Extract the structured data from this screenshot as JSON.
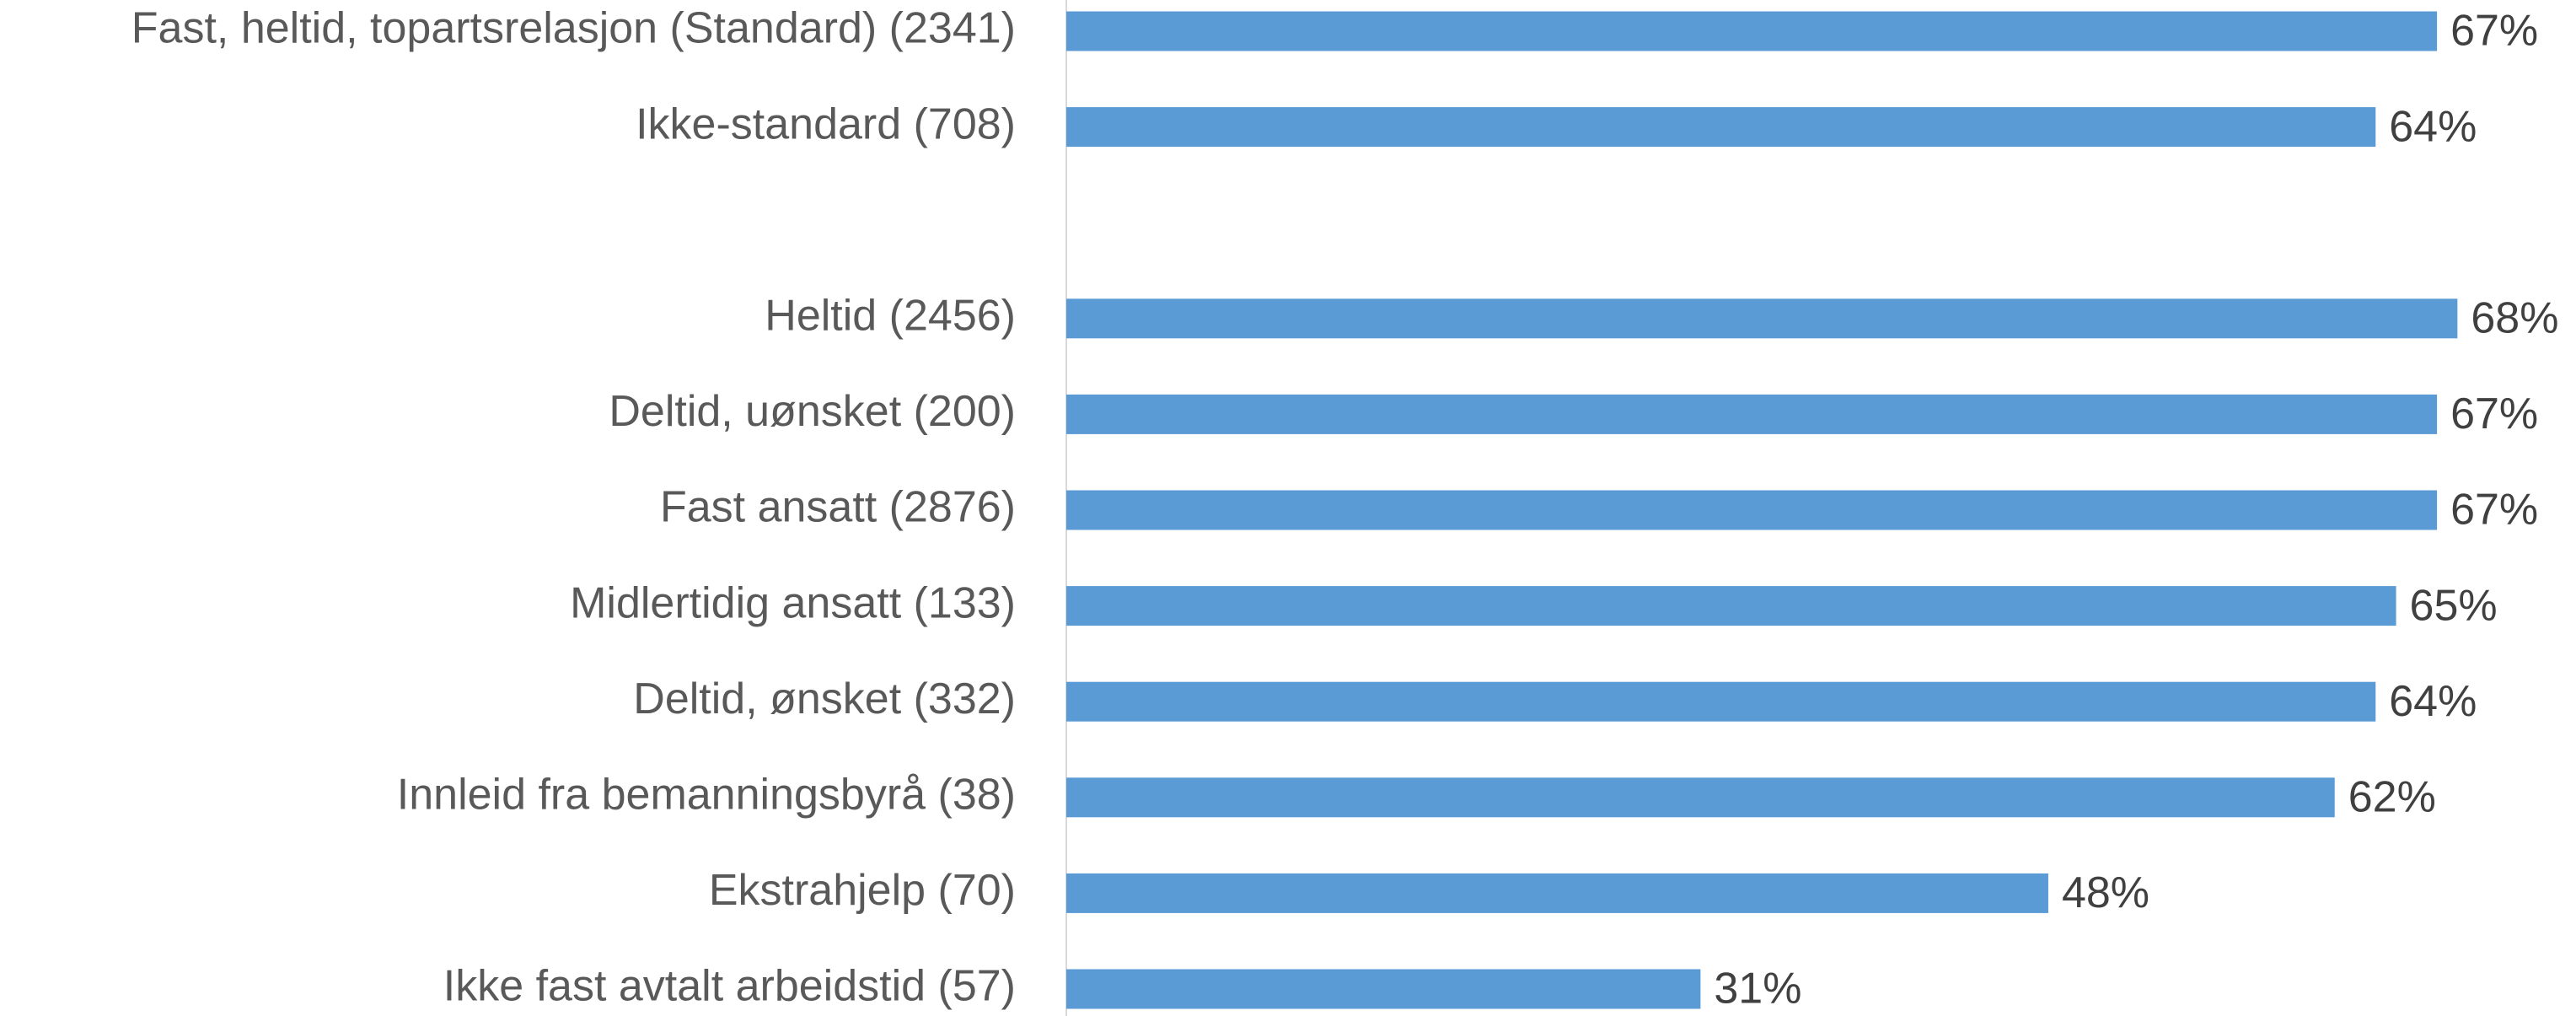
{
  "chart_data": {
    "type": "bar",
    "orientation": "horizontal",
    "categories": [
      "Fast, heltid, topartsrelasjon (Standard) (2341)",
      "Ikke-standard (708)",
      null,
      "Heltid (2456)",
      "Deltid, uønsket (200)",
      "Fast ansatt (2876)",
      "Midlertidig ansatt (133)",
      "Deltid, ønsket (332)",
      "Innleid fra bemanningsbyrå (38)",
      "Ekstrahjelp (70)",
      "Ikke fast avtalt arbeidstid (57)"
    ],
    "values": [
      67,
      64,
      null,
      68,
      67,
      67,
      65,
      64,
      62,
      48,
      31
    ],
    "value_labels": [
      "67%",
      "64%",
      null,
      "68%",
      "67%",
      "67%",
      "65%",
      "64%",
      "62%",
      "48%",
      "31%"
    ],
    "color": "#5b9bd5"
  }
}
